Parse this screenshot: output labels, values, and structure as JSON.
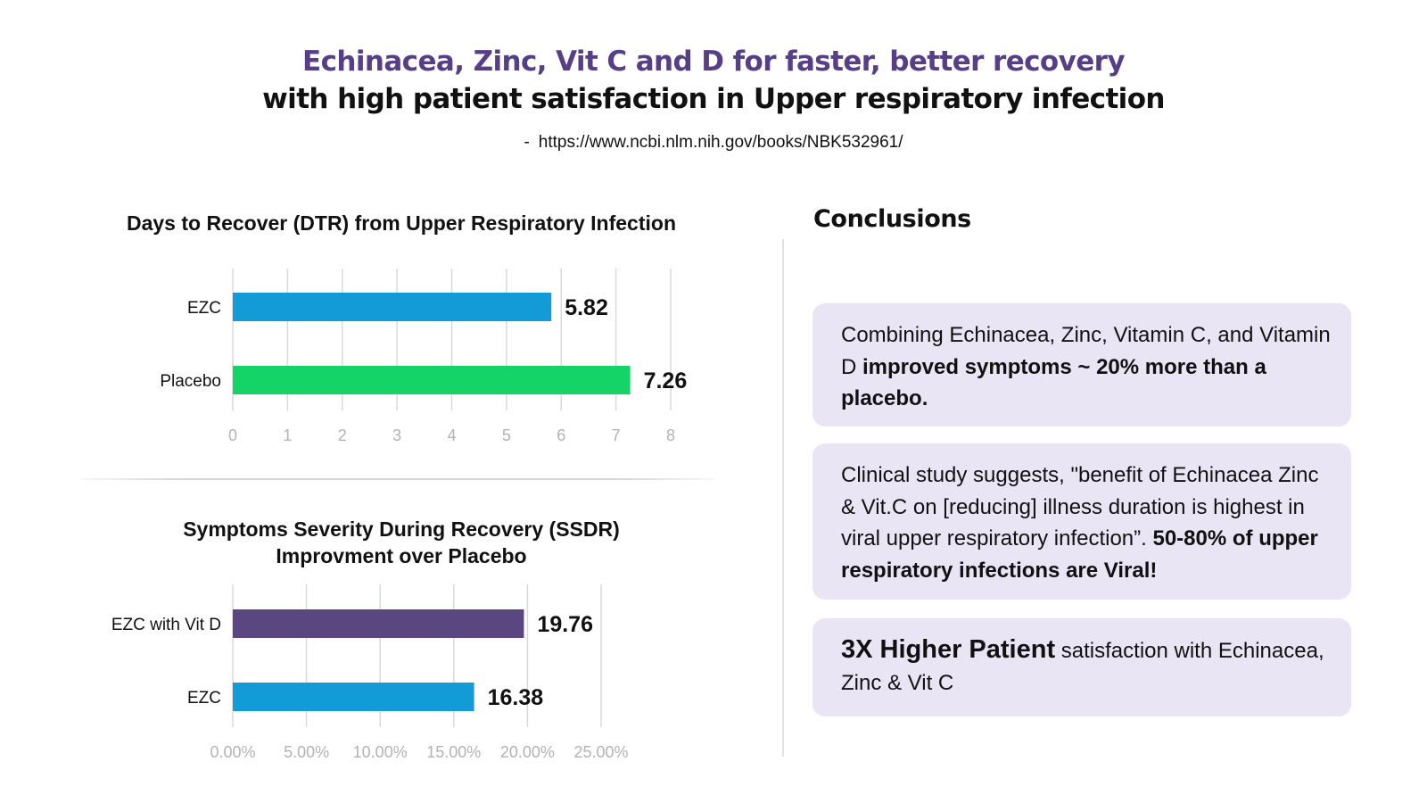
{
  "header": {
    "title": "Echinacea, Zinc, Vit C and D for faster, better recovery",
    "subtitle": "with high patient satisfaction in Upper respiratory infection",
    "source_dash": "-",
    "source_url": "https://www.ncbi.nlm.nih.gov/books/NBK532961/"
  },
  "colors": {
    "title_purple": "#563f86",
    "ezc_blue": "#129bd6",
    "placebo_green": "#14d367",
    "vitd_purple": "#5a4680",
    "grid": "#d9d9d9",
    "tick": "#b3b3b3",
    "card_bg": "#e9e5f5"
  },
  "chart_data": [
    {
      "type": "bar",
      "orientation": "horizontal",
      "title": "Days to Recover (DTR) from Upper Respiratory Infection",
      "categories": [
        "EZC",
        "Placebo"
      ],
      "values": [
        5.82,
        7.26
      ],
      "value_labels": [
        "5.82",
        "7.26"
      ],
      "bar_colors": [
        "#129bd6",
        "#14d367"
      ],
      "xlim": [
        0,
        8
      ],
      "xticks": [
        "0",
        "1",
        "2",
        "3",
        "4",
        "5",
        "6",
        "7",
        "8"
      ],
      "grid": true
    },
    {
      "type": "bar",
      "orientation": "horizontal",
      "title": "Symptoms Severity During Recovery (SSDR)\nImprovment over Placebo",
      "title_lines": [
        "Symptoms Severity During Recovery (SSDR)",
        "Improvment over Placebo"
      ],
      "categories": [
        "EZC with Vit D",
        "EZC"
      ],
      "values": [
        19.76,
        16.38
      ],
      "value_labels": [
        "19.76",
        "16.38"
      ],
      "bar_colors": [
        "#5a4680",
        "#129bd6"
      ],
      "xlim": [
        0,
        25
      ],
      "xticks": [
        "0.00%",
        "5.00%",
        "10.00%",
        "15.00%",
        "20.00%",
        "25.00%"
      ],
      "grid": true
    }
  ],
  "conclusions": {
    "title": "Conclusions",
    "card1": {
      "text": "Combining Echinacea, Zinc, Vitamin C, and Vitamin D ",
      "bold": "improved symptoms ~ 20% more than a placebo."
    },
    "card2": {
      "text": "Clinical study suggests, \"benefit of Echinacea Zinc & Vit.C on [reducing] illness duration is highest in viral upper respiratory infection”. ",
      "bold": "50-80% of upper respiratory infections are Viral!"
    },
    "card3": {
      "bold": "3X Higher Patient",
      "text": " satisfaction with Echinacea, Zinc & Vit C"
    }
  }
}
